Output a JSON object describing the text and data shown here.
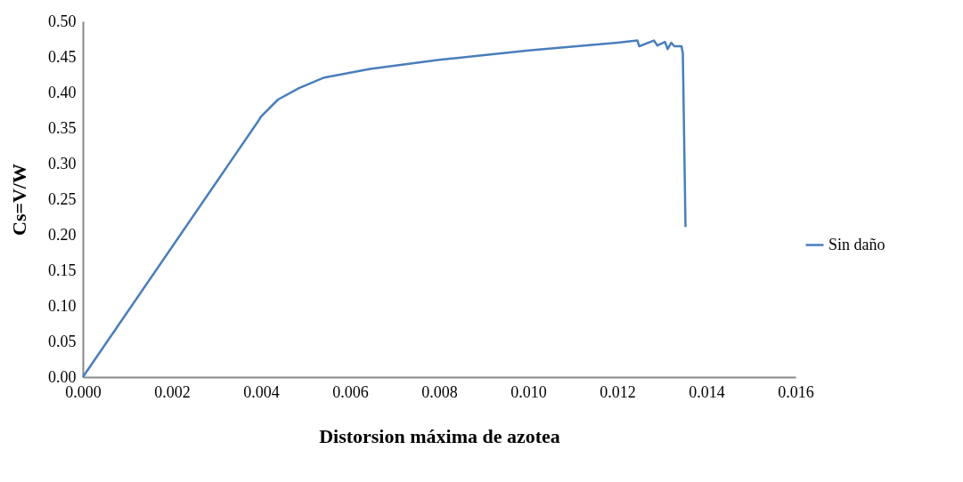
{
  "chart_data": {
    "type": "line",
    "xlabel": "Distorsion máxima de azotea",
    "ylabel": "Cs=V/W",
    "series": [
      {
        "name": "Sin daño",
        "color": "#4a7ebb",
        "x": [
          0,
          0.00394,
          0.004,
          0.00438,
          0.00485,
          0.00542,
          0.00645,
          0.008,
          0.01,
          0.012,
          0.01245,
          0.01249,
          0.01282,
          0.0129,
          0.01307,
          0.01313,
          0.01321,
          0.01328,
          0.01344,
          0.01347,
          0.01353
        ],
        "values": [
          0,
          0.36,
          0.366,
          0.39,
          0.406,
          0.421,
          0.433,
          0.446,
          0.459,
          0.47,
          0.473,
          0.465,
          0.473,
          0.466,
          0.471,
          0.461,
          0.47,
          0.465,
          0.465,
          0.455,
          0.211
        ]
      }
    ],
    "xlim": [
      0,
      0.016
    ],
    "ylim": [
      0,
      0.5
    ],
    "xticks": [
      {
        "value": 0,
        "label": "0.000"
      },
      {
        "value": 0.002,
        "label": "0.002"
      },
      {
        "value": 0.004,
        "label": "0.004"
      },
      {
        "value": 0.006,
        "label": "0.006"
      },
      {
        "value": 0.008,
        "label": "0.008"
      },
      {
        "value": 0.01,
        "label": "0.010"
      },
      {
        "value": 0.012,
        "label": "0.012"
      },
      {
        "value": 0.014,
        "label": "0.014"
      },
      {
        "value": 0.016,
        "label": "0.016"
      }
    ],
    "yticks": [
      {
        "value": 0,
        "label": "0.00"
      },
      {
        "value": 0.05,
        "label": "0.05"
      },
      {
        "value": 0.1,
        "label": "0.10"
      },
      {
        "value": 0.15,
        "label": "0.15"
      },
      {
        "value": 0.2,
        "label": "0.20"
      },
      {
        "value": 0.25,
        "label": "0.25"
      },
      {
        "value": 0.3,
        "label": "0.30"
      },
      {
        "value": 0.35,
        "label": "0.35"
      },
      {
        "value": 0.4,
        "label": "0.40"
      },
      {
        "value": 0.45,
        "label": "0.45"
      },
      {
        "value": 0.5,
        "label": "0.50"
      }
    ],
    "grid": false,
    "legend": "right",
    "marker": "none",
    "line_style": "solid"
  }
}
